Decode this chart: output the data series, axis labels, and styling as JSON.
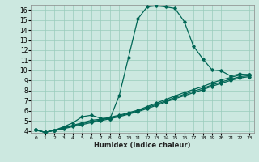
{
  "xlabel": "Humidex (Indice chaleur)",
  "bg_color": "#cce8e0",
  "grid_color": "#99ccbb",
  "line_color": "#006655",
  "xlim": [
    -0.5,
    23.5
  ],
  "ylim": [
    3.8,
    16.5
  ],
  "xticks": [
    0,
    1,
    2,
    3,
    4,
    5,
    6,
    7,
    8,
    9,
    10,
    11,
    12,
    13,
    14,
    15,
    16,
    17,
    18,
    19,
    20,
    21,
    22,
    23
  ],
  "yticks": [
    4,
    5,
    6,
    7,
    8,
    9,
    10,
    11,
    12,
    13,
    14,
    15,
    16
  ],
  "line1_x": [
    0,
    1,
    2,
    3,
    4,
    5,
    6,
    7,
    8,
    9,
    10,
    11,
    12,
    13,
    14,
    15,
    16,
    17,
    18,
    19,
    20,
    21,
    22,
    23
  ],
  "line1_y": [
    4.1,
    3.85,
    4.05,
    4.4,
    4.8,
    5.4,
    5.55,
    5.25,
    5.2,
    7.5,
    11.3,
    15.1,
    16.3,
    16.4,
    16.3,
    16.15,
    14.85,
    12.4,
    11.15,
    10.05,
    9.95,
    9.45,
    9.65,
    9.55
  ],
  "line2_x": [
    0,
    1,
    2,
    3,
    4,
    5,
    6,
    7,
    8,
    9,
    10,
    11,
    12,
    13,
    14,
    15,
    16,
    17,
    18,
    19,
    20,
    21,
    22,
    23
  ],
  "line2_y": [
    4.1,
    3.85,
    4.05,
    4.3,
    4.55,
    4.8,
    5.05,
    5.15,
    5.35,
    5.55,
    5.8,
    6.05,
    6.4,
    6.75,
    7.1,
    7.45,
    7.8,
    8.1,
    8.4,
    8.75,
    9.05,
    9.3,
    9.55,
    9.6
  ],
  "line3_x": [
    0,
    1,
    2,
    3,
    4,
    5,
    6,
    7,
    8,
    9,
    10,
    11,
    12,
    13,
    14,
    15,
    16,
    17,
    18,
    19,
    20,
    21,
    22,
    23
  ],
  "line3_y": [
    4.1,
    3.85,
    4.05,
    4.25,
    4.5,
    4.72,
    4.92,
    5.08,
    5.28,
    5.48,
    5.73,
    5.98,
    6.3,
    6.62,
    6.97,
    7.3,
    7.62,
    7.92,
    8.22,
    8.55,
    8.85,
    9.12,
    9.38,
    9.48
  ],
  "line4_x": [
    0,
    1,
    2,
    3,
    4,
    5,
    6,
    7,
    8,
    9,
    10,
    11,
    12,
    13,
    14,
    15,
    16,
    17,
    18,
    19,
    20,
    21,
    22,
    23
  ],
  "line4_y": [
    4.1,
    3.85,
    4.05,
    4.2,
    4.42,
    4.62,
    4.82,
    5.0,
    5.2,
    5.4,
    5.65,
    5.9,
    6.2,
    6.52,
    6.85,
    7.18,
    7.48,
    7.78,
    8.08,
    8.42,
    8.72,
    9.0,
    9.25,
    9.38
  ]
}
